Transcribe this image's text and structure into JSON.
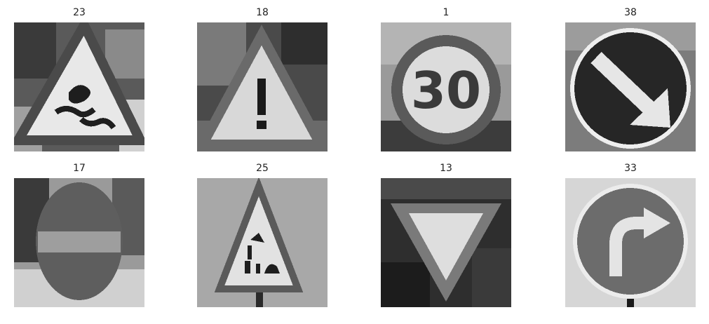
{
  "figure": {
    "panels": [
      {
        "title": "23",
        "depicts": "slippery-road-sign-icon"
      },
      {
        "title": "18",
        "depicts": "general-caution-sign-icon"
      },
      {
        "title": "1",
        "depicts": "speed-limit-30-sign-icon"
      },
      {
        "title": "38",
        "depicts": "keep-right-sign-icon"
      },
      {
        "title": "17",
        "depicts": "no-entry-sign-icon"
      },
      {
        "title": "25",
        "depicts": "road-work-sign-icon"
      },
      {
        "title": "13",
        "depicts": "yield-sign-icon"
      },
      {
        "title": "33",
        "depicts": "turn-right-ahead-sign-icon"
      }
    ],
    "speed_sign_text": "30",
    "colors": {
      "background": "#ffffff",
      "title": "#222222"
    }
  }
}
